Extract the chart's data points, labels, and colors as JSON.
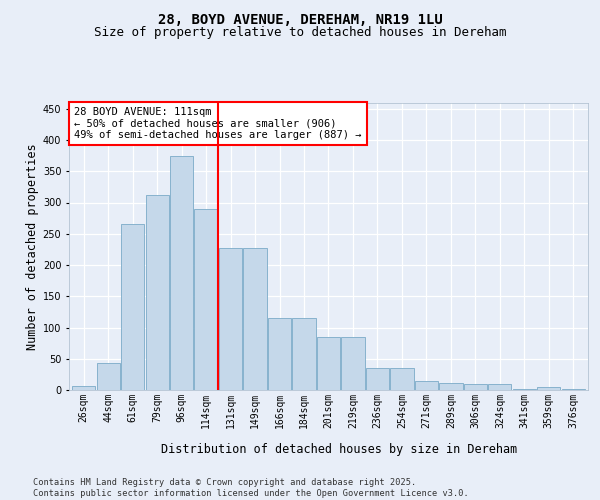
{
  "title": "28, BOYD AVENUE, DEREHAM, NR19 1LU",
  "subtitle": "Size of property relative to detached houses in Dereham",
  "xlabel": "Distribution of detached houses by size in Dereham",
  "ylabel": "Number of detached properties",
  "categories": [
    "26sqm",
    "44sqm",
    "61sqm",
    "79sqm",
    "96sqm",
    "114sqm",
    "131sqm",
    "149sqm",
    "166sqm",
    "184sqm",
    "201sqm",
    "219sqm",
    "236sqm",
    "254sqm",
    "271sqm",
    "289sqm",
    "306sqm",
    "324sqm",
    "341sqm",
    "359sqm",
    "376sqm"
  ],
  "values": [
    7,
    43,
    265,
    312,
    375,
    290,
    228,
    228,
    115,
    115,
    85,
    85,
    35,
    35,
    15,
    12,
    10,
    10,
    2,
    5,
    2
  ],
  "bar_color": "#c5d8ea",
  "bar_edge_color": "#7aaac8",
  "vline_x_index": 5.5,
  "vline_color": "red",
  "annotation_text": "28 BOYD AVENUE: 111sqm\n← 50% of detached houses are smaller (906)\n49% of semi-detached houses are larger (887) →",
  "annotation_box_color": "white",
  "annotation_box_edge_color": "red",
  "ylim_max": 460,
  "yticks": [
    0,
    50,
    100,
    150,
    200,
    250,
    300,
    350,
    400,
    450
  ],
  "background_color": "#e8eef8",
  "grid_color": "white",
  "footer_line1": "Contains HM Land Registry data © Crown copyright and database right 2025.",
  "footer_line2": "Contains public sector information licensed under the Open Government Licence v3.0.",
  "title_fontsize": 10,
  "subtitle_fontsize": 9,
  "axis_label_fontsize": 8.5,
  "tick_fontsize": 7,
  "annotation_fontsize": 7.5
}
